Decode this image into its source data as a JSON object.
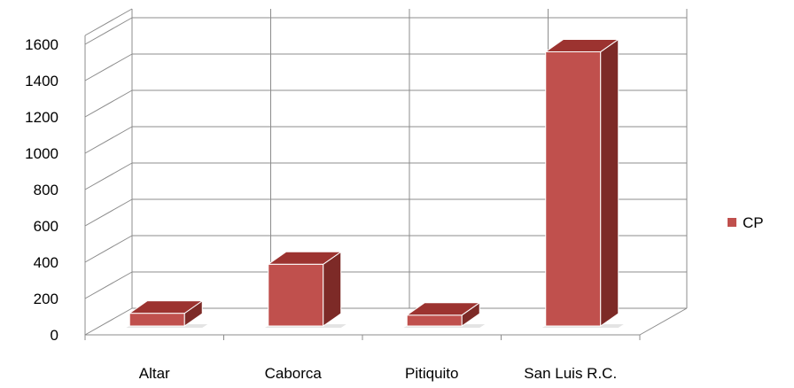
{
  "chart_data": {
    "type": "bar",
    "style": "3d-column",
    "categories": [
      "Altar",
      "Caborca",
      "Pitiquito",
      "San Luis R.C."
    ],
    "series": [
      {
        "name": "CP",
        "values": [
          70,
          340,
          60,
          1510
        ]
      }
    ],
    "ylim": [
      0,
      1600
    ],
    "yticks": [
      "0",
      "200",
      "400",
      "600",
      "800",
      "1000",
      "1200",
      "1400",
      "1600"
    ],
    "grid": true,
    "legend_position": "right",
    "colors": {
      "bar_front": "#c0504d",
      "bar_top": "#9c3330",
      "bar_side": "#7d2a27",
      "grid": "#8c8c8c"
    }
  }
}
